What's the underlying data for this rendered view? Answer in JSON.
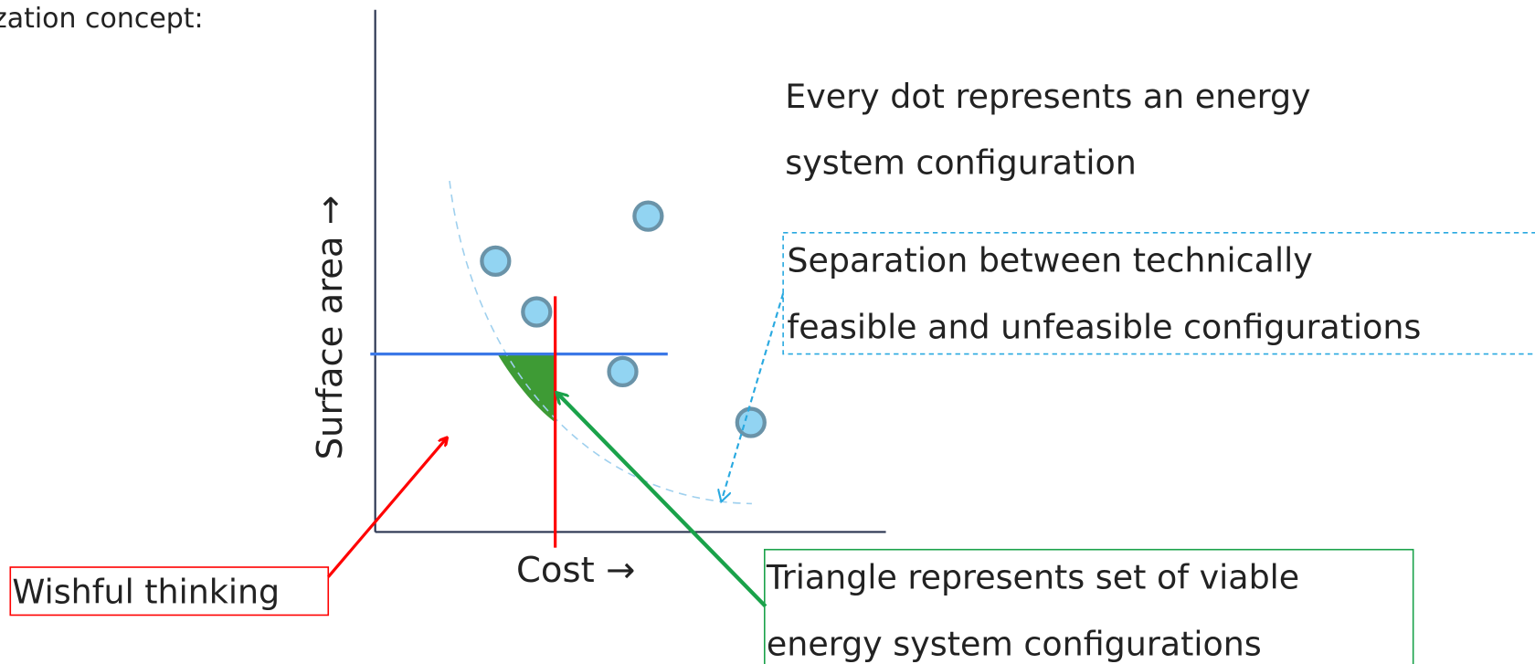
{
  "header": {
    "title": "zation concept:"
  },
  "axes": {
    "y_label": "Surface area →",
    "x_label": "Cost →"
  },
  "notes": {
    "dots": [
      "Every dot represents an energy",
      "system configuration"
    ],
    "separation": [
      "Separation between technically",
      "feasible and unfeasible configurations"
    ],
    "triangle": [
      "Triangle represents set of viable",
      "energy system configurations"
    ],
    "wishful": "Wishful thinking"
  }
}
